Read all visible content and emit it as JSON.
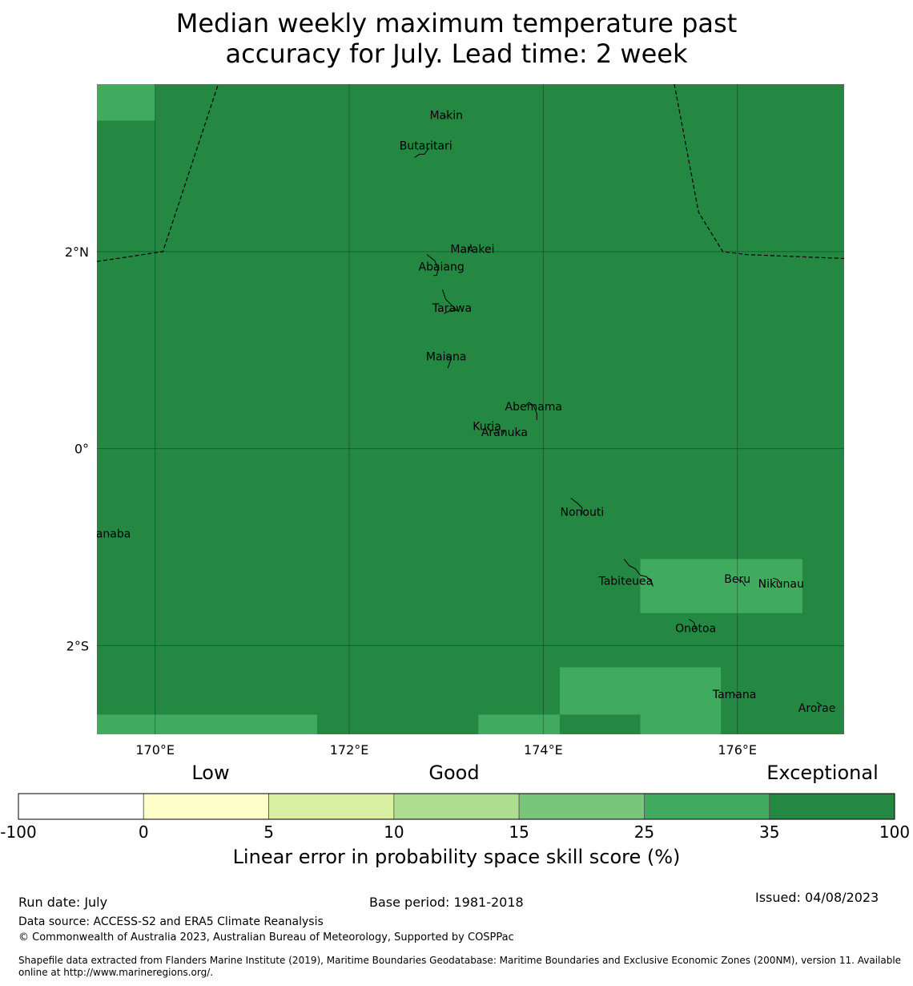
{
  "title": {
    "line1": "Median weekly maximum temperature past",
    "line2": "accuracy for July. Lead time: 2 week"
  },
  "colors": {
    "exceptional": "#248843",
    "very_good": "#40aa5e",
    "boundary": "#000000"
  },
  "map": {
    "lon_range": [
      169.4,
      177.1
    ],
    "lat_range": [
      -2.9,
      3.7
    ],
    "lon_ticks": [
      {
        "value": 170,
        "label": "170°E"
      },
      {
        "value": 172,
        "label": "172°E"
      },
      {
        "value": 174,
        "label": "174°E"
      },
      {
        "value": 176,
        "label": "176°E"
      }
    ],
    "lat_ticks": [
      {
        "value": 2,
        "label": "2°N"
      },
      {
        "value": 0,
        "label": "0°"
      },
      {
        "value": -2,
        "label": "2°S"
      }
    ],
    "background_class": "35-100",
    "cells": [
      {
        "lon": [
          169.4,
          170.0
        ],
        "lat": [
          3.33,
          3.7
        ],
        "class": "25-35"
      },
      {
        "lon": [
          175.0,
          176.67
        ],
        "lat": [
          -1.67,
          -1.12
        ],
        "class": "25-35"
      },
      {
        "lon": [
          174.17,
          175.83
        ],
        "lat": [
          -2.22,
          -2.9
        ],
        "class": "25-35"
      },
      {
        "lon": [
          169.4,
          171.67
        ],
        "lat": [
          -2.7,
          -2.9
        ],
        "class": "25-35"
      },
      {
        "lon": [
          173.33,
          174.17
        ],
        "lat": [
          -2.7,
          -2.9
        ],
        "class": "25-35"
      },
      {
        "lon": [
          174.17,
          175.0
        ],
        "lat": [
          -2.7,
          -2.9
        ],
        "class": "35-100"
      }
    ],
    "places": [
      {
        "name": "Makin",
        "lon": 173.0,
        "lat": 3.38
      },
      {
        "name": "Butaritari",
        "lon": 172.79,
        "lat": 3.07
      },
      {
        "name": "Marakei",
        "lon": 173.27,
        "lat": 2.02
      },
      {
        "name": "Abaiang",
        "lon": 172.95,
        "lat": 1.84
      },
      {
        "name": "Tarawa",
        "lon": 173.06,
        "lat": 1.42
      },
      {
        "name": "Maiana",
        "lon": 173.0,
        "lat": 0.93
      },
      {
        "name": "Abemama",
        "lon": 173.9,
        "lat": 0.42
      },
      {
        "name": "Kuria",
        "lon": 173.42,
        "lat": 0.22
      },
      {
        "name": "Aranuka",
        "lon": 173.6,
        "lat": 0.16
      },
      {
        "name": "Nonouti",
        "lon": 174.4,
        "lat": -0.65
      },
      {
        "name": "Banaba",
        "lon": 169.53,
        "lat": -0.87
      },
      {
        "name": "Tabiteuea",
        "lon": 174.85,
        "lat": -1.35
      },
      {
        "name": "Beru",
        "lon": 176.0,
        "lat": -1.33
      },
      {
        "name": "Nikunau",
        "lon": 176.45,
        "lat": -1.38
      },
      {
        "name": "Onotoa",
        "lon": 175.57,
        "lat": -1.83
      },
      {
        "name": "Tamana",
        "lon": 175.97,
        "lat": -2.5
      },
      {
        "name": "Arorae",
        "lon": 176.82,
        "lat": -2.64
      }
    ],
    "eez_boundaries": [
      [
        [
          169.4,
          1.9
        ],
        [
          170.08,
          2.0
        ],
        [
          170.65,
          3.7
        ]
      ],
      [
        [
          175.35,
          3.7
        ],
        [
          175.6,
          2.4
        ],
        [
          175.85,
          2.0
        ],
        [
          176.1,
          1.97
        ],
        [
          177.1,
          1.93
        ]
      ]
    ]
  },
  "legend": {
    "category_labels": [
      "Low",
      "Good",
      "Exceptional"
    ],
    "bins": [
      {
        "from": "-100",
        "to": "0",
        "color": "#ffffff"
      },
      {
        "from": "0",
        "to": "5",
        "color": "#ffffcc"
      },
      {
        "from": "5",
        "to": "10",
        "color": "#d9f0a3"
      },
      {
        "from": "10",
        "to": "15",
        "color": "#addd8e"
      },
      {
        "from": "15",
        "to": "25",
        "color": "#78c679"
      },
      {
        "from": "25",
        "to": "35",
        "color": "#40aa5e"
      },
      {
        "from": "35",
        "to": "100",
        "color": "#248843"
      }
    ],
    "tick_labels": [
      "-100",
      "0",
      "5",
      "10",
      "15",
      "25",
      "35",
      "100"
    ],
    "axis_label": "Linear error in probability space skill score (%)"
  },
  "footer": {
    "run_date": "Run date: July",
    "base_period": "Base period: 1981-2018",
    "issued": "Issued: 04/08/2023",
    "data_source": "Data source: ACCESS-S2 and ERA5 Climate Reanalysis",
    "copyright": "© Commonwealth of Australia 2023, Australian Bureau of Meteorology, Supported by COSPPac",
    "shapefile_line1": "Shapefile data extracted from Flanders Marine Institute (2019), Maritime Boundaries Geodatabase: Maritime Boundaries and Exclusive Economic Zones (200NM), version 11. Available",
    "shapefile_line2": "online at http://www.marineregions.org/."
  }
}
